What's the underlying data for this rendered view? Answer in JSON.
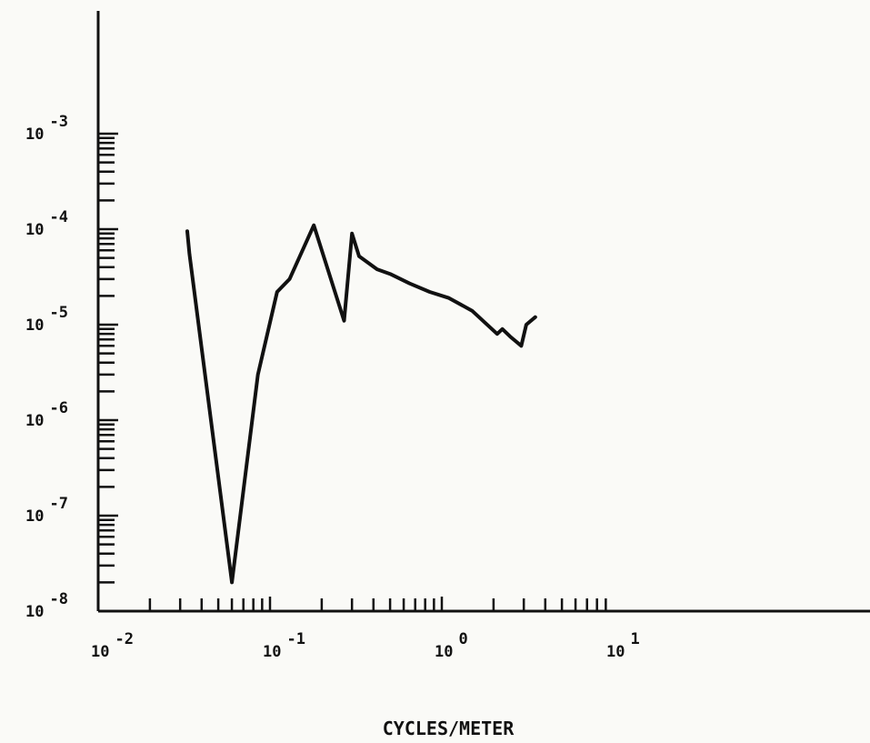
{
  "chart_data": {
    "type": "line",
    "title": "",
    "xlabel": "CYCLES/METER",
    "ylabel": "",
    "x_scale": "log",
    "y_scale": "log",
    "xlim": [
      0.01,
      100
    ],
    "ylim": [
      1e-08,
      0.01
    ],
    "grid": false,
    "x_ticks": [
      {
        "value": 0.01,
        "base": "10",
        "exp": "-2"
      },
      {
        "value": 0.1,
        "base": "10",
        "exp": "-1"
      },
      {
        "value": 1,
        "base": "10",
        "exp": "0"
      },
      {
        "value": 10,
        "base": "10",
        "exp": "1"
      }
    ],
    "y_ticks": [
      {
        "value": 1e-08,
        "base": "10",
        "exp": "-8"
      },
      {
        "value": 1e-07,
        "base": "10",
        "exp": "-7"
      },
      {
        "value": 1e-06,
        "base": "10",
        "exp": "-6"
      },
      {
        "value": 1e-05,
        "base": "10",
        "exp": "-5"
      },
      {
        "value": 0.0001,
        "base": "10",
        "exp": "-4"
      },
      {
        "value": 0.001,
        "base": "10",
        "exp": "-3"
      }
    ],
    "series": [
      {
        "x": [
          0.033,
          0.034,
          0.06,
          0.085,
          0.11,
          0.13,
          0.18,
          0.27,
          0.3,
          0.33,
          0.42,
          0.5,
          0.65,
          0.85,
          1.1,
          1.5,
          2.1,
          2.25,
          2.5,
          2.9,
          3.1,
          3.5
        ],
        "y": [
          9.5e-05,
          5.5e-05,
          2e-08,
          3e-06,
          2.2e-05,
          3e-05,
          0.00011,
          1.1e-05,
          9e-05,
          5.2e-05,
          3.8e-05,
          3.4e-05,
          2.7e-05,
          2.2e-05,
          1.9e-05,
          1.4e-05,
          8e-06,
          9e-06,
          7.5e-06,
          6e-06,
          1e-05,
          1.2e-05
        ]
      }
    ]
  }
}
